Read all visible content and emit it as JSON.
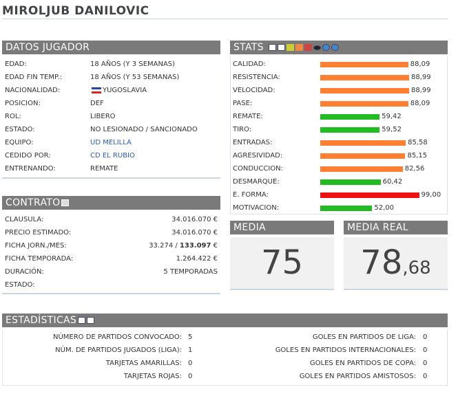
{
  "header": {
    "title": "MIROLJUB DANILOVIC"
  },
  "datos": {
    "title": "DATOS JUGADOR",
    "rows": [
      {
        "label": "EDAD:",
        "value": "18 AÑOS (Y 3 SEMANAS)"
      },
      {
        "label": "EDAD FIN TEMP.:",
        "value": "18 AÑOS (Y 53 SEMANAS)"
      },
      {
        "label": "NACIONALIDAD:",
        "value": "YUGOSLAVIA"
      },
      {
        "label": "POSICION:",
        "value": "DEF"
      },
      {
        "label": "ROL:",
        "value": "LIBERO"
      },
      {
        "label": "ESTADO:",
        "value": "NO LESIONADO / SANCIONADO"
      },
      {
        "label": "EQUIPO:",
        "value": "UD MELILLA"
      },
      {
        "label": "CEDIDO POR:",
        "value": "CD EL RUBIO"
      },
      {
        "label": "ENTRENANDO:",
        "value": "REMATE"
      }
    ]
  },
  "contrato": {
    "title": "CONTRATO",
    "rows": [
      {
        "label": "CLAUSULA:",
        "value": "34.016.070 €"
      },
      {
        "label": "PRECIO ESTIMADO:",
        "value": "34.016.070 €"
      },
      {
        "label": "FICHA JORN./MES:",
        "value": "33.274 / ",
        "value_bold": "133.097",
        "value_suffix": " €"
      },
      {
        "label": "FICHA TEMPORADA:",
        "value": "1.264.422 €"
      },
      {
        "label": "DURACIÓN:",
        "value": "5 TEMPORADAS"
      },
      {
        "label": "ESTADO:",
        "value": ""
      }
    ]
  },
  "stats": {
    "title": "STATS",
    "rows": [
      {
        "label": "CALIDAD:",
        "value": 88.09,
        "value_label": "88,09",
        "color": "#ff7f33"
      },
      {
        "label": "RESISTENCIA:",
        "value": 88.99,
        "value_label": "88,99",
        "color": "#ff7f33"
      },
      {
        "label": "VELOCIDAD:",
        "value": 88.99,
        "value_label": "88,99",
        "color": "#ff7f33"
      },
      {
        "label": "PASE:",
        "value": 88.09,
        "value_label": "88,09",
        "color": "#ff7f33"
      },
      {
        "label": "REMATE:",
        "value": 59.42,
        "value_label": "59,42",
        "color": "#22bb22"
      },
      {
        "label": "TIRO:",
        "value": 59.52,
        "value_label": "59,52",
        "color": "#22bb22"
      },
      {
        "label": "ENTRADAS:",
        "value": 85.58,
        "value_label": "85,58",
        "color": "#ff7f33"
      },
      {
        "label": "AGRESIVIDAD:",
        "value": 85.15,
        "value_label": "85,15",
        "color": "#ff7f33"
      },
      {
        "label": "CONDUCCION:",
        "value": 82.56,
        "value_label": "82,56",
        "color": "#ff7f33"
      },
      {
        "label": "DESMARQUE:",
        "value": 60.42,
        "value_label": "60,42",
        "color": "#22bb22"
      },
      {
        "label": "E. FORMA:",
        "value": 99.0,
        "value_label": "99,00",
        "color": "#ee1111"
      },
      {
        "label": "MOTIVACION:",
        "value": 52.0,
        "value_label": "52,00",
        "color": "#22bb22"
      }
    ]
  },
  "media": {
    "title": "MEDIA",
    "value": "75"
  },
  "media_real": {
    "title": "MEDIA REAL",
    "value_int": "78",
    "value_dec": ",68"
  },
  "estadisticas": {
    "title": "ESTADÍSTICAS",
    "left": [
      {
        "label": "NÚMERO DE PARTIDOS CONVOCADO:",
        "value": "5"
      },
      {
        "label": "NÚM. DE PARTIDOS JUGADOS (LIGA):",
        "value": "1"
      },
      {
        "label": "TARJETAS AMARILLAS:",
        "value": "0"
      },
      {
        "label": "TARJETAS ROJAS:",
        "value": "0"
      }
    ],
    "right": [
      {
        "label": "GOLES EN PARTIDOS DE LIGA:",
        "value": "0"
      },
      {
        "label": "GOLES EN PARTIDOS INTERNACIONALES:",
        "value": "0"
      },
      {
        "label": "GOLES EN PARTIDOS DE COPA:",
        "value": "0"
      },
      {
        "label": "GOLES EN PARTIDOS AMISTOSOS:",
        "value": "0"
      }
    ]
  }
}
